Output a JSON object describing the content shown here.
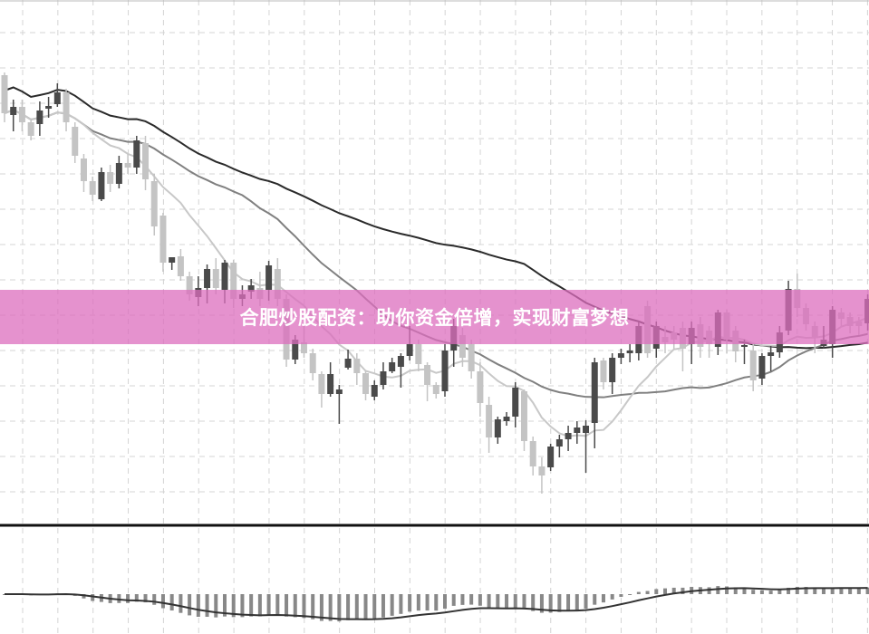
{
  "banner": {
    "text": "合肥炒股配资：助你资金倍增，实现财富梦想",
    "color": "#e08fc8"
  },
  "chart_data": {
    "type": "candlestick",
    "title": "",
    "grid": true,
    "colors": {
      "up": "#4a4a4a",
      "down": "#c4c4c4",
      "ma_short": "#c8c8c8",
      "ma_mid": "#808080",
      "ma_long": "#2a2a2a",
      "macd_bars": "#888888",
      "macd_signal": "#333333"
    },
    "candles_ohlc": [
      [
        517,
        520,
        465,
        475
      ],
      [
        473,
        490,
        455,
        482
      ],
      [
        482,
        490,
        455,
        465
      ],
      [
        465,
        468,
        445,
        450
      ],
      [
        463,
        488,
        450,
        478
      ],
      [
        480,
        493,
        470,
        483
      ],
      [
        485,
        508,
        482,
        498
      ],
      [
        498,
        502,
        455,
        465
      ],
      [
        460,
        465,
        420,
        428
      ],
      [
        425,
        430,
        388,
        400
      ],
      [
        400,
        405,
        378,
        385
      ],
      [
        380,
        415,
        378,
        410
      ],
      [
        410,
        418,
        388,
        397
      ],
      [
        397,
        428,
        392,
        420
      ],
      [
        420,
        430,
        408,
        415
      ],
      [
        415,
        450,
        408,
        445
      ],
      [
        442,
        450,
        390,
        402
      ],
      [
        400,
        408,
        340,
        350
      ],
      [
        362,
        365,
        300,
        310
      ],
      [
        310,
        316,
        302,
        316
      ],
      [
        317,
        325,
        290,
        295
      ],
      [
        295,
        300,
        268,
        275
      ],
      [
        272,
        295,
        262,
        282
      ],
      [
        282,
        308,
        265,
        303
      ],
      [
        303,
        315,
        275,
        282
      ],
      [
        280,
        313,
        265,
        310
      ],
      [
        310,
        313,
        260,
        270
      ],
      [
        270,
        285,
        262,
        275
      ],
      [
        278,
        292,
        270,
        285
      ],
      [
        282,
        300,
        262,
        270
      ],
      [
        280,
        312,
        268,
        307
      ],
      [
        303,
        315,
        262,
        270
      ],
      [
        270,
        275,
        195,
        203
      ],
      [
        203,
        230,
        198,
        225
      ],
      [
        222,
        240,
        205,
        210
      ],
      [
        210,
        215,
        180,
        188
      ],
      [
        187,
        190,
        150,
        165
      ],
      [
        165,
        200,
        162,
        187
      ],
      [
        165,
        175,
        132,
        170
      ],
      [
        194,
        214,
        192,
        204
      ],
      [
        204,
        210,
        175,
        188
      ],
      [
        188,
        190,
        158,
        165
      ],
      [
        162,
        180,
        158,
        175
      ],
      [
        175,
        200,
        170,
        190
      ],
      [
        190,
        205,
        188,
        200
      ],
      [
        195,
        210,
        172,
        207
      ],
      [
        207,
        240,
        202,
        220
      ],
      [
        220,
        225,
        190,
        198
      ],
      [
        197,
        200,
        157,
        175
      ],
      [
        175,
        178,
        160,
        165
      ],
      [
        168,
        220,
        162,
        213
      ],
      [
        213,
        248,
        195,
        240
      ],
      [
        230,
        238,
        195,
        205
      ],
      [
        220,
        225,
        182,
        190
      ],
      [
        190,
        200,
        140,
        155
      ],
      [
        153,
        162,
        100,
        117
      ],
      [
        117,
        140,
        110,
        137
      ],
      [
        135,
        145,
        130,
        140
      ],
      [
        140,
        178,
        128,
        172
      ],
      [
        168,
        170,
        102,
        113
      ],
      [
        113,
        118,
        75,
        85
      ],
      [
        85,
        95,
        55,
        75
      ],
      [
        84,
        110,
        80,
        107
      ],
      [
        107,
        120,
        95,
        115
      ],
      [
        115,
        130,
        102,
        122
      ],
      [
        122,
        135,
        110,
        128
      ],
      [
        122,
        136,
        78,
        130
      ],
      [
        133,
        205,
        105,
        200
      ],
      [
        202,
        205,
        170,
        178
      ],
      [
        178,
        210,
        165,
        205
      ],
      [
        205,
        215,
        198,
        210
      ],
      [
        210,
        220,
        200,
        213
      ],
      [
        210,
        245,
        202,
        240
      ],
      [
        262,
        268,
        205,
        210
      ],
      [
        215,
        245,
        205,
        240
      ],
      [
        228,
        240,
        210,
        222
      ],
      [
        233,
        240,
        215,
        225
      ],
      [
        238,
        245,
        190,
        215
      ],
      [
        220,
        245,
        198,
        238
      ],
      [
        242,
        250,
        205,
        217
      ],
      [
        235,
        240,
        205,
        220
      ],
      [
        217,
        258,
        208,
        255
      ],
      [
        255,
        258,
        210,
        225
      ],
      [
        235,
        240,
        200,
        212
      ],
      [
        217,
        225,
        198,
        219
      ],
      [
        213,
        220,
        168,
        180
      ],
      [
        182,
        210,
        175,
        207
      ],
      [
        207,
        218,
        190,
        211
      ],
      [
        211,
        240,
        205,
        233
      ],
      [
        235,
        290,
        230,
        281
      ],
      [
        281,
        298,
        250,
        260
      ],
      [
        260,
        265,
        235,
        242
      ],
      [
        240,
        245,
        210,
        228
      ],
      [
        218,
        240,
        215,
        225
      ],
      [
        220,
        262,
        205,
        258
      ],
      [
        255,
        260,
        240,
        248
      ],
      [
        250,
        255,
        232,
        240
      ],
      [
        245,
        250,
        230,
        240
      ],
      [
        243,
        275,
        235,
        270
      ]
    ]
  }
}
